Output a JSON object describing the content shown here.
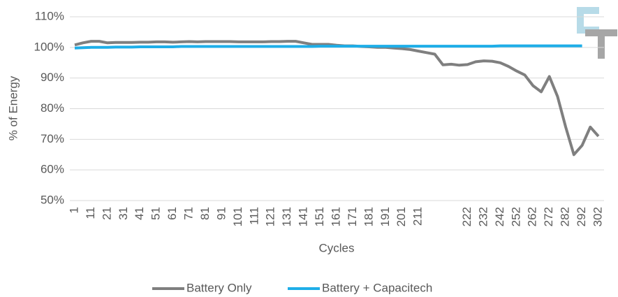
{
  "chart_data": {
    "type": "line",
    "ylabel": "% of Energy",
    "xlabel": "Cycles",
    "categories": [
      "1",
      null,
      "11",
      null,
      "21",
      null,
      "31",
      null,
      "41",
      null,
      "51",
      null,
      "61",
      null,
      "71",
      null,
      "81",
      null,
      "91",
      null,
      "101",
      null,
      "111",
      null,
      "121",
      null,
      "131",
      null,
      "141",
      null,
      "151",
      null,
      "161",
      null,
      "171",
      null,
      "181",
      null,
      "191",
      null,
      "201",
      null,
      "211",
      null,
      null,
      null,
      null,
      null,
      "222",
      null,
      "232",
      null,
      "242",
      null,
      "252",
      null,
      "262",
      null,
      "272",
      null,
      "282",
      null,
      "292",
      null,
      "302"
    ],
    "series": [
      {
        "name": "Battery Only",
        "color": "#7f7f7f",
        "values": [
          100.8,
          101.5,
          102,
          102,
          101.5,
          101.6,
          101.6,
          101.6,
          101.7,
          101.7,
          101.8,
          101.8,
          101.7,
          101.8,
          101.9,
          101.8,
          101.9,
          101.9,
          101.9,
          101.9,
          101.8,
          101.8,
          101.8,
          101.8,
          101.9,
          101.9,
          102,
          102,
          101.5,
          101,
          101,
          101,
          100.7,
          100.5,
          100.5,
          100.3,
          100.2,
          100,
          100,
          99.8,
          99.6,
          99.3,
          98.8,
          98.3,
          97.8,
          94.3,
          94.5,
          94.2,
          94.4,
          95.3,
          95.6,
          95.5,
          95,
          93.8,
          92.3,
          91,
          87.5,
          85.5,
          90.5,
          84,
          74,
          65,
          68,
          74,
          71
        ]
      },
      {
        "name": "Battery + Capacitech",
        "color": "#1eaee8",
        "values": [
          99.8,
          99.9,
          100,
          100,
          100,
          100.1,
          100.1,
          100.1,
          100.2,
          100.2,
          100.2,
          100.2,
          100.2,
          100.3,
          100.3,
          100.3,
          100.3,
          100.3,
          100.3,
          100.3,
          100.3,
          100.3,
          100.3,
          100.3,
          100.3,
          100.3,
          100.3,
          100.3,
          100.3,
          100.3,
          100.4,
          100.4,
          100.4,
          100.4,
          100.4,
          100.4,
          100.4,
          100.4,
          100.4,
          100.4,
          100.4,
          100.4,
          100.4,
          100.4,
          100.4,
          100.4,
          100.4,
          100.4,
          100.4,
          100.4,
          100.4,
          100.4,
          100.5,
          100.5,
          100.5,
          100.5,
          100.5,
          100.5,
          100.5,
          100.5,
          100.5,
          100.5,
          100.5,
          null,
          null
        ]
      }
    ],
    "ylim": [
      50,
      110
    ],
    "yticks": [
      {
        "value": 50,
        "label": "50%"
      },
      {
        "value": 60,
        "label": "60%"
      },
      {
        "value": 70,
        "label": "70%"
      },
      {
        "value": 80,
        "label": "80%"
      },
      {
        "value": 90,
        "label": "90%"
      },
      {
        "value": 100,
        "label": "100%"
      },
      {
        "value": 110,
        "label": "110%"
      }
    ],
    "grid": true,
    "legend": "bottom"
  }
}
